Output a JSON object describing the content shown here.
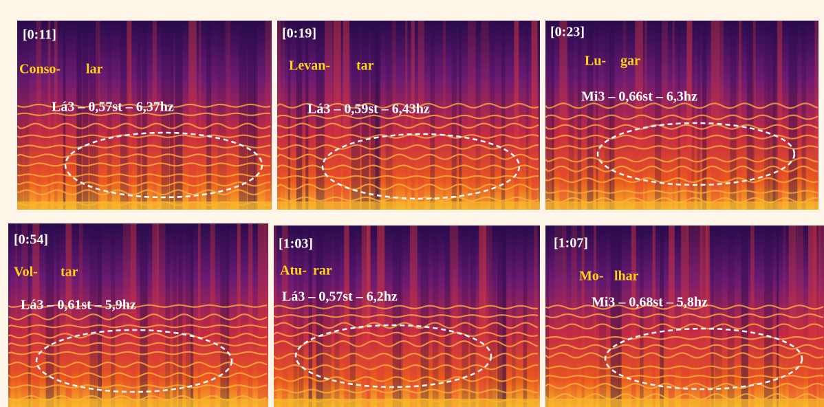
{
  "panels": [
    {
      "time": "[0:11]",
      "syllables": [
        "Conso-",
        "lar"
      ],
      "note": "Lá3 – 0,57st – 6,37hz"
    },
    {
      "time": "[0:19]",
      "syllables": [
        "Levan-",
        "tar"
      ],
      "note": "Lá3 – 0,59st – 6,43hz"
    },
    {
      "time": "[0:23]",
      "syllables": [
        "Lu-",
        "gar"
      ],
      "note": "Mi3 – 0,66st – 6,3hz"
    },
    {
      "time": "[0:54]",
      "syllables": [
        "Vol-",
        "tar"
      ],
      "note": "Lá3 – 0,61st – 5,9hz"
    },
    {
      "time": "[1:03]",
      "syllables": [
        "Atu-",
        "rar"
      ],
      "note": "Lá3 – 0,57st – 6,2hz"
    },
    {
      "time": "[1:07]",
      "syllables": [
        "Mo-",
        "lhar"
      ],
      "note": "Mi3 – 0,68st – 5,8hz"
    }
  ]
}
